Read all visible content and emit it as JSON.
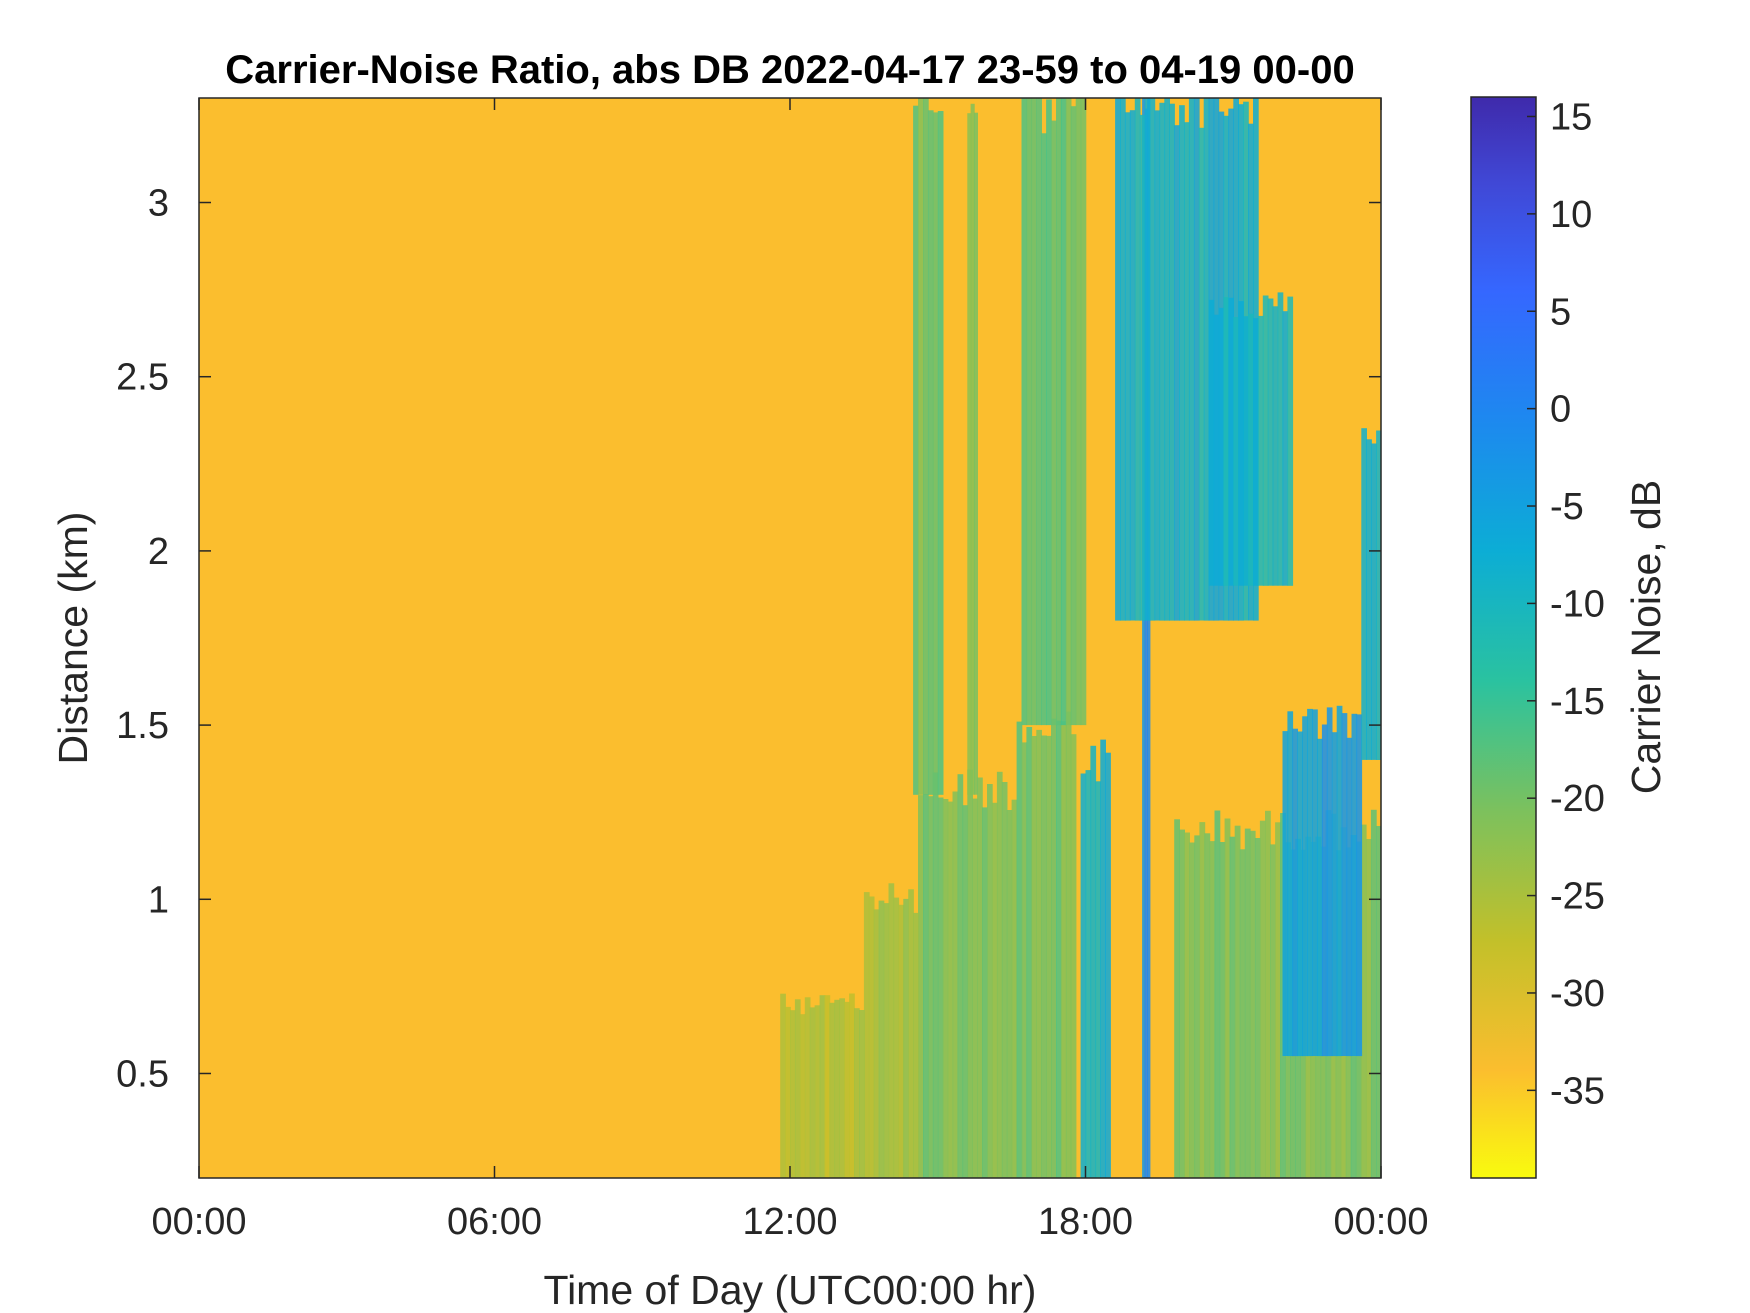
{
  "chart_data": {
    "type": "heatmap",
    "title": "Carrier-Noise Ratio, abs DB 2022-04-17 23-59 to 04-19 00-00",
    "xlabel": "Time of Day (UTC00:00 hr)",
    "ylabel": "Distance (km)",
    "xlim_hours": [
      0,
      24
    ],
    "x_ticks": [
      {
        "hour": 0,
        "label": "00:00"
      },
      {
        "hour": 6,
        "label": "06:00"
      },
      {
        "hour": 12,
        "label": "12:00"
      },
      {
        "hour": 18,
        "label": "18:00"
      },
      {
        "hour": 24,
        "label": "00:00"
      }
    ],
    "ylim_km": [
      0.2,
      3.3
    ],
    "y_ticks": [
      {
        "value": 0.5,
        "label": "0.5"
      },
      {
        "value": 1,
        "label": "1"
      },
      {
        "value": 1.5,
        "label": "1.5"
      },
      {
        "value": 2,
        "label": "2"
      },
      {
        "value": 2.5,
        "label": "2.5"
      },
      {
        "value": 3,
        "label": "3"
      }
    ],
    "colorbar": {
      "label": "Carrier Noise, dB",
      "range_db": [
        -39.5,
        16
      ],
      "ticks": [
        {
          "value": 15,
          "label": "15"
        },
        {
          "value": 10,
          "label": "10"
        },
        {
          "value": 5,
          "label": "5"
        },
        {
          "value": 0,
          "label": "0"
        },
        {
          "value": -5,
          "label": "-5"
        },
        {
          "value": -10,
          "label": "-10"
        },
        {
          "value": -15,
          "label": "-15"
        },
        {
          "value": -20,
          "label": "-20"
        },
        {
          "value": -25,
          "label": "-25"
        },
        {
          "value": -30,
          "label": "-30"
        },
        {
          "value": -35,
          "label": "-35"
        }
      ],
      "colormap": "parula",
      "colors": [
        "#f9fb0e",
        "#fbbe2e",
        "#c2c02a",
        "#7cc15d",
        "#2ac2a0",
        "#0cadd5",
        "#1d89ef",
        "#3567ff",
        "#4048d6",
        "#3f2aab"
      ]
    },
    "background_db": -31,
    "features": [
      {
        "name": "plume",
        "t_start": 14.6,
        "t_end": 16.6,
        "y_low": 0.2,
        "y_high": 1.32,
        "db": -20
      },
      {
        "name": "plume",
        "t_start": 16.6,
        "t_end": 17.8,
        "y_low": 0.2,
        "y_high": 1.5,
        "db": -19
      },
      {
        "name": "plume",
        "t_start": 13.5,
        "t_end": 14.6,
        "y_low": 0.2,
        "y_high": 1.0,
        "db": -24
      },
      {
        "name": "plume",
        "t_start": 11.8,
        "t_end": 13.5,
        "y_low": 0.2,
        "y_high": 0.7,
        "db": -26
      },
      {
        "name": "streak",
        "t_start": 14.5,
        "t_end": 15.1,
        "y_low": 1.3,
        "y_high": 3.3,
        "db": -19
      },
      {
        "name": "streak",
        "t_start": 15.6,
        "t_end": 15.8,
        "y_low": 1.3,
        "y_high": 3.3,
        "db": -20
      },
      {
        "name": "streak",
        "t_start": 16.7,
        "t_end": 18.0,
        "y_low": 1.5,
        "y_high": 3.3,
        "db": -18
      },
      {
        "name": "band",
        "t_start": 17.9,
        "t_end": 18.5,
        "y_low": 0.2,
        "y_high": 1.4,
        "db": -9
      },
      {
        "name": "line",
        "t_start": 19.15,
        "t_end": 19.3,
        "y_low": 0.2,
        "y_high": 3.3,
        "db": -2
      },
      {
        "name": "band",
        "t_start": 18.6,
        "t_end": 21.5,
        "y_low": 1.8,
        "y_high": 3.3,
        "db": -8
      },
      {
        "name": "band",
        "t_start": 20.5,
        "t_end": 22.2,
        "y_low": 1.9,
        "y_high": 2.7,
        "db": -9
      },
      {
        "name": "plume",
        "t_start": 19.8,
        "t_end": 24.0,
        "y_low": 0.2,
        "y_high": 1.2,
        "db": -20
      },
      {
        "name": "band",
        "t_start": 22.0,
        "t_end": 23.6,
        "y_low": 0.55,
        "y_high": 1.5,
        "db": -4
      },
      {
        "name": "band",
        "t_start": 23.6,
        "t_end": 24.0,
        "y_low": 1.4,
        "y_high": 2.3,
        "db": -7
      }
    ]
  }
}
